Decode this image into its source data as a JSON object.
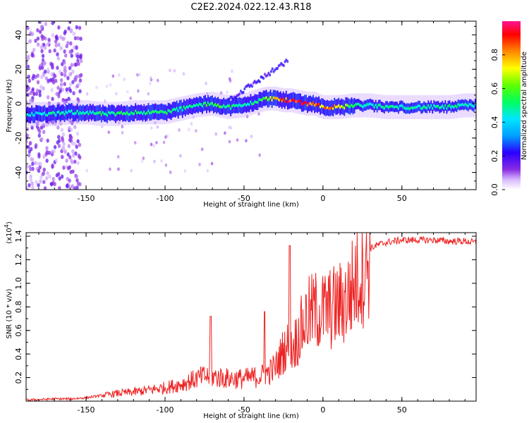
{
  "chart_data": [
    {
      "type": "heatmap",
      "title": "C2E2.2024.022.12.43.R18",
      "xlabel": "Height of straight line (km)",
      "ylabel": "Frequency (Hz)",
      "xlim": [
        -188,
        97
      ],
      "ylim": [
        -50,
        48
      ],
      "xticks": [
        -150,
        -100,
        -50,
        0,
        50
      ],
      "yticks": [
        -40,
        -20,
        0,
        20,
        40
      ],
      "colorbar": {
        "label": "Normalized spectral amplitude",
        "range": [
          0.0,
          1.0
        ],
        "ticks": [
          0.0,
          0.2,
          0.4,
          0.6,
          0.8
        ],
        "tick_labels": [
          "0.0",
          "0.2",
          "0.4",
          "0.6",
          "0.8"
        ]
      },
      "ridge": {
        "x": [
          -186,
          -170,
          -160,
          -150,
          -140,
          -130,
          -120,
          -110,
          -100,
          -90,
          -80,
          -70,
          -60,
          -50,
          -40,
          -35,
          -30,
          -25,
          -20,
          -15,
          -10,
          -5,
          0,
          5,
          10,
          20,
          30,
          40,
          50,
          60,
          70,
          80,
          90,
          96
        ],
        "freq": [
          -6,
          -6,
          -5,
          -5,
          -6,
          -6,
          -5,
          -5,
          -5,
          -3,
          -1,
          0,
          -2,
          -1,
          2,
          3,
          3,
          2,
          2,
          1,
          0,
          0,
          -2,
          -2,
          -2,
          -1,
          -1,
          -2,
          -2,
          -2,
          -2,
          -2,
          -1,
          -1
        ],
        "amp": [
          0.45,
          0.5,
          0.5,
          0.5,
          0.55,
          0.55,
          0.55,
          0.55,
          0.55,
          0.5,
          0.55,
          0.6,
          0.55,
          0.5,
          0.55,
          0.7,
          0.8,
          0.95,
          1.0,
          0.95,
          0.95,
          0.9,
          0.85,
          0.85,
          0.75,
          0.55,
          0.5,
          0.5,
          0.5,
          0.5,
          0.5,
          0.5,
          0.5,
          0.5
        ]
      }
    },
    {
      "type": "line",
      "xlabel": "Height of straight line (km)",
      "ylabel": "SNR (10 * v/v)",
      "y_scale_label": "(x10",
      "y_scale_exponent": "4",
      "y_scale_suffix": ")",
      "xlim": [
        -188,
        97
      ],
      "ylim": [
        0.0,
        1.43
      ],
      "xticks": [
        -150,
        -100,
        -50,
        0,
        50
      ],
      "yticks": [
        0.2,
        0.4,
        0.6,
        0.8,
        1.0,
        1.2,
        1.4
      ],
      "color": "#ee2222",
      "series": [
        {
          "name": "SNR",
          "x": [
            -188,
            -170,
            -160,
            -150,
            -140,
            -130,
            -120,
            -110,
            -100,
            -90,
            -80,
            -75,
            -70,
            -60,
            -50,
            -40,
            -35,
            -30,
            -25,
            -22,
            -20,
            -15,
            -10,
            -5,
            0,
            5,
            10,
            15,
            20,
            25,
            30,
            35,
            40,
            50,
            60,
            70,
            80,
            90,
            96
          ],
          "mean": [
            0.01,
            0.02,
            0.02,
            0.03,
            0.05,
            0.07,
            0.08,
            0.1,
            0.12,
            0.15,
            0.2,
            0.22,
            0.22,
            0.2,
            0.2,
            0.22,
            0.25,
            0.3,
            0.45,
            0.5,
            0.45,
            0.6,
            0.75,
            0.8,
            0.8,
            0.82,
            0.85,
            0.9,
            1.05,
            1.2,
            1.3,
            1.33,
            1.35,
            1.37,
            1.37,
            1.37,
            1.36,
            1.36,
            1.35
          ],
          "peaks": [
            {
              "x": -71,
              "y": 0.72
            },
            {
              "x": -37,
              "y": 0.76
            },
            {
              "x": -21,
              "y": 1.32
            }
          ]
        }
      ]
    }
  ]
}
